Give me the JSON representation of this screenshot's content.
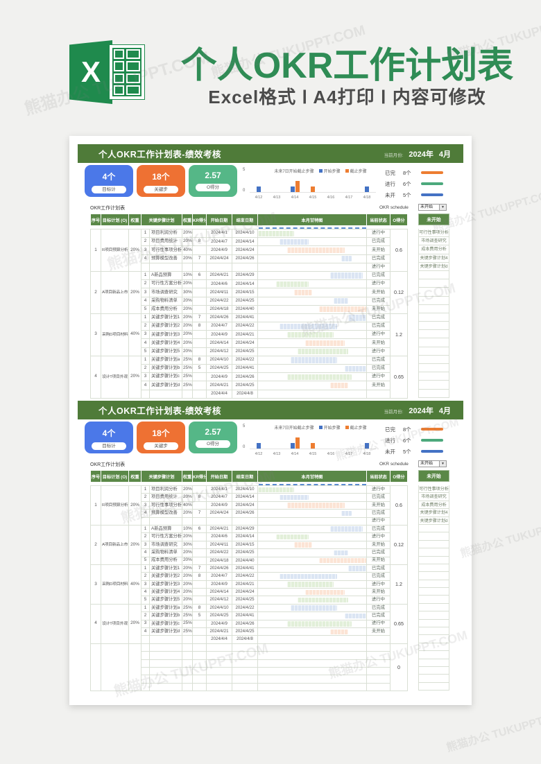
{
  "watermark": "熊猫办公 TUKUPPT.COM",
  "banner": {
    "logo_letter": "X",
    "title": "个人OKR工作计划表",
    "subtitle": "Excel格式 Ⅰ A4打印 Ⅰ 内容可修改",
    "title_color": "#2f8c55"
  },
  "sheet": {
    "titlebar": {
      "title": "个人OKR工作计划表-绩效考核",
      "month_label": "当前月份:",
      "year": "2024年",
      "month": "4月"
    },
    "cards": [
      {
        "value": "4个",
        "label": "目标计",
        "color": "#4b78e8"
      },
      {
        "value": "18个",
        "label": "关键步",
        "color": "#ee7133"
      },
      {
        "value": "2.57",
        "label": "O得分",
        "color": "#55b787"
      }
    ],
    "chart_data": {
      "type": "bar",
      "title": "未来7日开始截止步骤",
      "categories": [
        "4/12",
        "4/13",
        "4/14",
        "4/15",
        "4/16",
        "4/17",
        "4/18"
      ],
      "series": [
        {
          "name": "开始步骤",
          "color": "#4472c4",
          "values": [
            1,
            0,
            1,
            0,
            0,
            0,
            1
          ]
        },
        {
          "name": "截止步骤",
          "color": "#ed7d31",
          "values": [
            0,
            0,
            2,
            1,
            0,
            0,
            0
          ]
        }
      ],
      "ylim": [
        0,
        5
      ],
      "grid": false,
      "legend_position": "top-right"
    },
    "stats": [
      {
        "label": "已完",
        "count": "8个",
        "color": "#ed7d31"
      },
      {
        "label": "进行",
        "count": "6个",
        "color": "#4ca97c"
      },
      {
        "label": "未开",
        "count": "5个",
        "color": "#4472c4"
      }
    ],
    "table_label": "OKR工作计划表",
    "schedule_label": "OKR schedule",
    "dropdown_value": "未开始",
    "panel": {
      "header": "未开始",
      "items": [
        "可行性事项分析",
        "市场调查研究",
        "成本费用分析",
        "关键步骤计划4",
        "关键步骤计划d"
      ]
    },
    "status_colors": {
      "已完成": "#dbe5f3",
      "进行中": "#e2efd9",
      "未开始": "#fce4d5"
    },
    "table": {
      "headers": [
        "序号",
        "目标计划 (O)",
        "权重",
        "关键步骤计划",
        "权重",
        "KR得分",
        "开始日期",
        "结束日期",
        "本月甘特图",
        "当前状态",
        "O得分"
      ],
      "groups": [
        {
          "seq": "1",
          "objective": "R项目预算分析",
          "weight": "20%",
          "o_score": "0.6",
          "rows": [
            {
              "n": "1",
              "name": "项目利润分析",
              "w": "20%",
              "score": "",
              "start": "2024/4/1",
              "end": "2024/4/10",
              "status": "进行中"
            },
            {
              "n": "2",
              "name": "项目费用统计",
              "w": "20%",
              "score": "8",
              "start": "2024/4/7",
              "end": "2024/4/14",
              "status": "已完成"
            },
            {
              "n": "3",
              "name": "可行性事项分析",
              "w": "40%",
              "score": "",
              "start": "2024/4/9",
              "end": "2024/4/24",
              "status": "未开始"
            },
            {
              "n": "4",
              "name": "预算模型改善",
              "w": "20%",
              "score": "7",
              "start": "2024/4/24",
              "end": "2024/4/26",
              "status": "已完成"
            },
            {
              "n": "",
              "name": "",
              "w": "",
              "score": "",
              "start": "",
              "end": "",
              "status": "进行中"
            }
          ]
        },
        {
          "seq": "2",
          "objective": "A项目新品上市",
          "weight": "20%",
          "o_score": "0.12",
          "rows": [
            {
              "n": "1",
              "name": "A新品预算",
              "w": "10%",
              "score": "6",
              "start": "2024/4/21",
              "end": "2024/4/29",
              "status": "已完成"
            },
            {
              "n": "2",
              "name": "可行性方案分析",
              "w": "20%",
              "score": "",
              "start": "2024/4/6",
              "end": "2024/4/14",
              "status": "进行中"
            },
            {
              "n": "3",
              "name": "市场调查研究",
              "w": "30%",
              "score": "",
              "start": "2024/4/11",
              "end": "2024/4/15",
              "status": "未开始"
            },
            {
              "n": "4",
              "name": "采购物料清单",
              "w": "20%",
              "score": "",
              "start": "2024/4/22",
              "end": "2024/4/25",
              "status": "已完成"
            },
            {
              "n": "5",
              "name": "成本费用分析",
              "w": "20%",
              "score": "",
              "start": "2024/4/18",
              "end": "2024/4/40",
              "status": "未开始"
            }
          ]
        },
        {
          "seq": "3",
          "objective": "采购D项目材料",
          "weight": "40%",
          "o_score": "1.2",
          "rows": [
            {
              "n": "1",
              "name": "关键步骤计划1",
              "w": "20%",
              "score": "7",
              "start": "2024/4/26",
              "end": "2024/4/41",
              "status": "已完成"
            },
            {
              "n": "2",
              "name": "关键步骤计划2",
              "w": "20%",
              "score": "8",
              "start": "2024/4/7",
              "end": "2024/4/22",
              "status": "已完成"
            },
            {
              "n": "3",
              "name": "关键步骤计划3",
              "w": "20%",
              "score": "",
              "start": "2024/4/9",
              "end": "2024/4/21",
              "status": "进行中"
            },
            {
              "n": "4",
              "name": "关键步骤计划4",
              "w": "20%",
              "score": "",
              "start": "2024/4/14",
              "end": "2024/4/24",
              "status": "未开始"
            },
            {
              "n": "5",
              "name": "关键步骤计划5",
              "w": "20%",
              "score": "",
              "start": "2024/4/12",
              "end": "2024/4/25",
              "status": "进行中"
            }
          ]
        },
        {
          "seq": "4",
          "objective": "设计T项目外观",
          "weight": "20%",
          "o_score": "0.65",
          "rows": [
            {
              "n": "1",
              "name": "关键步骤计划a",
              "w": "25%",
              "score": "8",
              "start": "2024/4/10",
              "end": "2024/4/22",
              "status": "已完成"
            },
            {
              "n": "2",
              "name": "关键步骤计划b",
              "w": "25%",
              "score": "5",
              "start": "2024/4/25",
              "end": "2024/4/41",
              "status": "已完成"
            },
            {
              "n": "3",
              "name": "关键步骤计划c",
              "w": "25%",
              "score": "",
              "start": "2024/4/9",
              "end": "2024/4/26",
              "status": "进行中"
            },
            {
              "n": "4",
              "name": "关键步骤计划d",
              "w": "25%",
              "score": "",
              "start": "2024/4/21",
              "end": "2024/4/25",
              "status": "未开始"
            },
            {
              "n": "",
              "name": "",
              "w": "",
              "score": "",
              "start": "2024/4/4",
              "end": "2024/4/8",
              "status": ""
            }
          ]
        }
      ]
    }
  },
  "sheets": [
    {
      "name": "sheet-1",
      "extra_empty_rows": 0,
      "extra_o_score": ""
    },
    {
      "name": "sheet-2",
      "extra_empty_rows": 6,
      "extra_o_score": "0"
    }
  ]
}
